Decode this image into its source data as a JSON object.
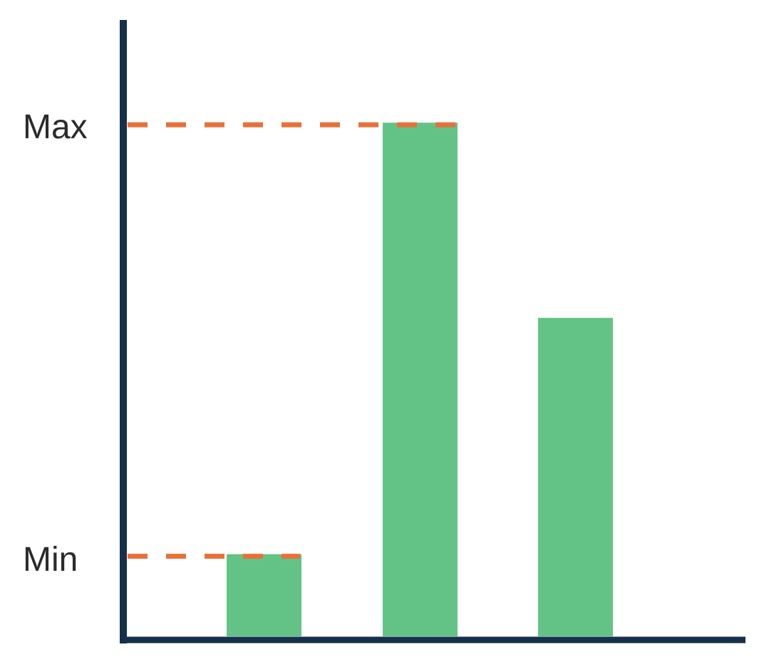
{
  "chart_data": {
    "type": "bar",
    "title": "",
    "xlabel": "",
    "ylabel": "",
    "categories": [
      "",
      "",
      ""
    ],
    "values": [
      16,
      100,
      62
    ],
    "ylim": [
      0,
      120
    ],
    "grid": false,
    "reference_lines": [
      {
        "label": "Max",
        "value": 100,
        "style": "dashed"
      },
      {
        "label": "Min",
        "value": 16,
        "style": "dashed"
      }
    ],
    "colors": {
      "bar": "#63c387",
      "reference_line": "#e8703a",
      "axis": "#14304a"
    }
  }
}
